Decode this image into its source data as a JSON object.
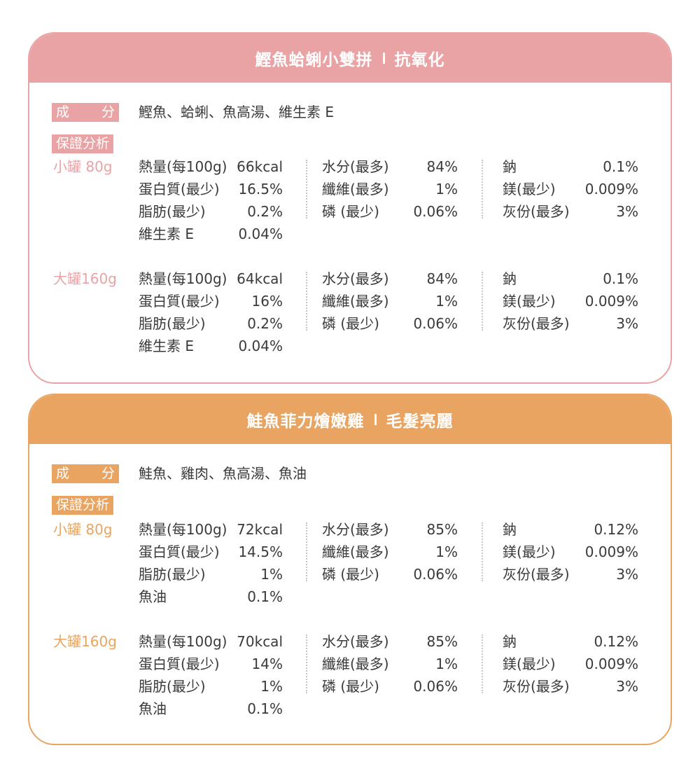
{
  "colors": {
    "pink": "#eaa3a4",
    "orange": "#e9a461"
  },
  "products": [
    {
      "title_main": "鰹魚蛤蜊小雙拼",
      "title_sub": "抗氧化",
      "ingredients_label_a": "成",
      "ingredients_label_b": "分",
      "ingredients": "鰹魚、蛤蜊、魚高湯、維生素 E",
      "analysis_label": "保證分析",
      "sizes": [
        {
          "size": "小罐 80g",
          "col1": [
            {
              "name": "熱量(每100g)",
              "value": "66kcal"
            },
            {
              "name": "蛋白質(最少)",
              "value": "16.5%"
            },
            {
              "name": "脂肪(最少)",
              "value": "0.2%"
            },
            {
              "name": "維生素 E",
              "value": "0.04%"
            }
          ],
          "col2": [
            {
              "name": "水分(最多)",
              "value": "84%"
            },
            {
              "name": "纖維(最多)",
              "value": "1%"
            },
            {
              "name": "磷 (最少)",
              "value": "0.06%"
            }
          ],
          "col3": [
            {
              "name": "鈉",
              "value": "0.1%"
            },
            {
              "name": "鎂(最少)",
              "value": "0.009%"
            },
            {
              "name": "灰份(最多)",
              "value": "3%"
            }
          ]
        },
        {
          "size": "大罐160g",
          "col1": [
            {
              "name": "熱量(每100g)",
              "value": "64kcal"
            },
            {
              "name": "蛋白質(最少)",
              "value": "16%"
            },
            {
              "name": "脂肪(最少)",
              "value": "0.2%"
            },
            {
              "name": "維生素 E",
              "value": "0.04%"
            }
          ],
          "col2": [
            {
              "name": "水分(最多)",
              "value": "84%"
            },
            {
              "name": "纖維(最多)",
              "value": "1%"
            },
            {
              "name": "磷 (最少)",
              "value": "0.06%"
            }
          ],
          "col3": [
            {
              "name": "鈉",
              "value": "0.1%"
            },
            {
              "name": "鎂(最少)",
              "value": "0.009%"
            },
            {
              "name": "灰份(最多)",
              "value": "3%"
            }
          ]
        }
      ]
    },
    {
      "title_main": "鮭魚菲力燴嫩雞",
      "title_sub": "毛髮亮麗",
      "ingredients_label_a": "成",
      "ingredients_label_b": "分",
      "ingredients": "鮭魚、雞肉、魚高湯、魚油",
      "analysis_label": "保證分析",
      "sizes": [
        {
          "size": "小罐 80g",
          "col1": [
            {
              "name": "熱量(每100g)",
              "value": "72kcal"
            },
            {
              "name": "蛋白質(最少)",
              "value": "14.5%"
            },
            {
              "name": "脂肪(最少)",
              "value": "1%"
            },
            {
              "name": "魚油",
              "value": "0.1%"
            }
          ],
          "col2": [
            {
              "name": "水分(最多)",
              "value": "85%"
            },
            {
              "name": "纖維(最多)",
              "value": "1%"
            },
            {
              "name": "磷 (最少)",
              "value": "0.06%"
            }
          ],
          "col3": [
            {
              "name": "鈉",
              "value": "0.12%"
            },
            {
              "name": "鎂(最少)",
              "value": "0.009%"
            },
            {
              "name": "灰份(最多)",
              "value": "3%"
            }
          ]
        },
        {
          "size": "大罐160g",
          "col1": [
            {
              "name": "熱量(每100g)",
              "value": "70kcal"
            },
            {
              "name": "蛋白質(最少)",
              "value": "14%"
            },
            {
              "name": "脂肪(最少)",
              "value": "1%"
            },
            {
              "name": "魚油",
              "value": "0.1%"
            }
          ],
          "col2": [
            {
              "name": "水分(最多)",
              "value": "85%"
            },
            {
              "name": "纖維(最多)",
              "value": "1%"
            },
            {
              "name": "磷 (最少)",
              "value": "0.06%"
            }
          ],
          "col3": [
            {
              "name": "鈉",
              "value": "0.12%"
            },
            {
              "name": "鎂(最少)",
              "value": "0.009%"
            },
            {
              "name": "灰份(最多)",
              "value": "3%"
            }
          ]
        }
      ]
    }
  ]
}
